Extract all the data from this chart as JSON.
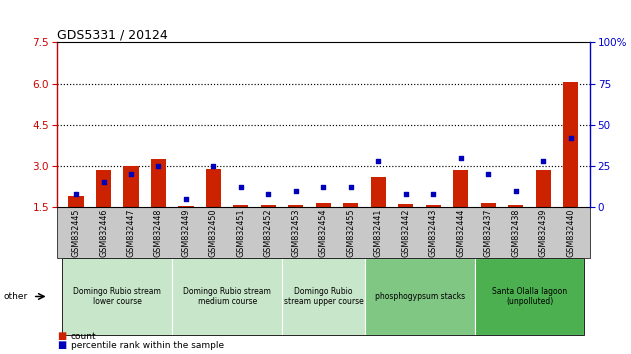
{
  "title": "GDS5331 / 20124",
  "samples": [
    "GSM832445",
    "GSM832446",
    "GSM832447",
    "GSM832448",
    "GSM832449",
    "GSM832450",
    "GSM832451",
    "GSM832452",
    "GSM832453",
    "GSM832454",
    "GSM832455",
    "GSM832441",
    "GSM832442",
    "GSM832443",
    "GSM832444",
    "GSM832437",
    "GSM832438",
    "GSM832439",
    "GSM832440"
  ],
  "red_values": [
    1.9,
    2.85,
    3.0,
    3.25,
    1.55,
    2.9,
    1.58,
    1.57,
    1.57,
    1.65,
    1.65,
    2.6,
    1.6,
    1.58,
    2.85,
    1.65,
    1.58,
    2.85,
    6.05
  ],
  "blue_values": [
    8,
    15,
    20,
    25,
    5,
    25,
    12,
    8,
    10,
    12,
    12,
    28,
    8,
    8,
    30,
    20,
    10,
    28,
    42
  ],
  "groups": [
    {
      "label": "Domingo Rubio stream\nlower course",
      "start": 0,
      "end": 3,
      "color": "#c8e6c9"
    },
    {
      "label": "Domingo Rubio stream\nmedium course",
      "start": 4,
      "end": 7,
      "color": "#c8e6c9"
    },
    {
      "label": "Domingo Rubio\nstream upper course",
      "start": 8,
      "end": 10,
      "color": "#c8e6c9"
    },
    {
      "label": "phosphogypsum stacks",
      "start": 11,
      "end": 14,
      "color": "#81c784"
    },
    {
      "label": "Santa Olalla lagoon\n(unpolluted)",
      "start": 15,
      "end": 18,
      "color": "#4caf50"
    }
  ],
  "left_ylim": [
    1.5,
    7.5
  ],
  "left_yticks": [
    1.5,
    3.0,
    4.5,
    6.0,
    7.5
  ],
  "right_ylim": [
    0,
    100
  ],
  "right_yticks": [
    0,
    25,
    50,
    75,
    100
  ],
  "left_color": "#cc0000",
  "right_color": "#0000cc",
  "bar_color": "#cc2200",
  "dot_color": "#0000bb",
  "grid_lines": [
    3.0,
    4.5,
    6.0
  ],
  "legend_count": "count",
  "legend_pct": "percentile rank within the sample",
  "other_label": "other",
  "tick_bg_color": "#c8c8c8",
  "bar_width": 0.55,
  "xlim": [
    -0.7,
    18.7
  ]
}
